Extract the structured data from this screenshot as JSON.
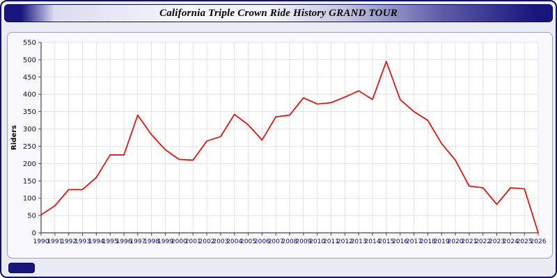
{
  "title": "California Triple Crown Ride History GRAND TOUR",
  "colors": {
    "line": "#ff0000",
    "navy": "#16167c",
    "page_bg": "#ebebf5",
    "panel_bg": "#f9f9fd",
    "plot_bg": "#ffffff",
    "grid": "#d8d8d8",
    "axis": "#444444",
    "x_tick_label": "#00008b",
    "y_tick_label": "#111111"
  },
  "chart_data": {
    "type": "line",
    "title": "California Triple Crown Ride History GRAND TOUR",
    "xlabel": "",
    "ylabel": "Riders",
    "ylim": [
      0,
      550
    ],
    "ytick_step": 50,
    "grid": true,
    "legend": "none",
    "x": [
      1990,
      1991,
      1992,
      1993,
      1994,
      1995,
      1996,
      1997,
      1998,
      1999,
      2000,
      2001,
      2002,
      2003,
      2004,
      2005,
      2006,
      2007,
      2008,
      2009,
      2010,
      2011,
      2012,
      2013,
      2014,
      2015,
      2016,
      2017,
      2018,
      2019,
      2020,
      2021,
      2022,
      2023,
      2024,
      2025,
      2026
    ],
    "series": [
      {
        "name": "Riders",
        "color": "#ff0000",
        "values": [
          52,
          78,
          125,
          125,
          160,
          225,
          225,
          340,
          283,
          240,
          212,
          210,
          265,
          278,
          342,
          312,
          268,
          335,
          340,
          390,
          372,
          376,
          392,
          410,
          385,
          495,
          385,
          350,
          325,
          258,
          210,
          135,
          130,
          82,
          130,
          127,
          0
        ]
      }
    ]
  }
}
